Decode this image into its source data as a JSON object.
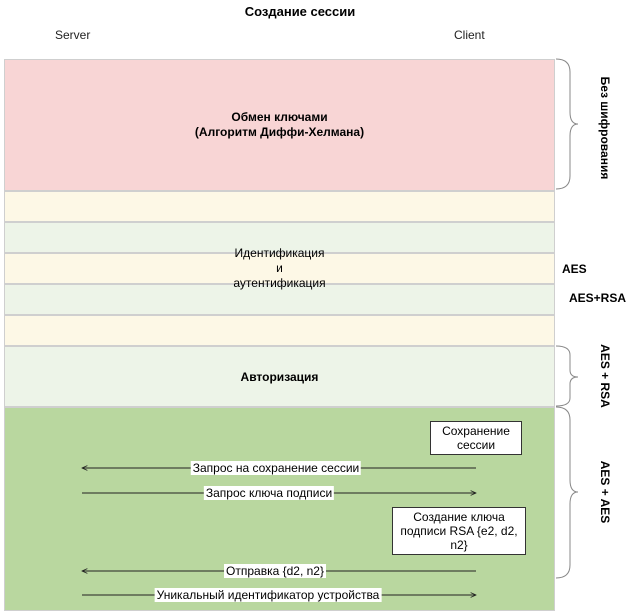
{
  "title": "Создание сессии",
  "parties": {
    "server": "Server",
    "client": "Client"
  },
  "sections": {
    "key_exchange": {
      "line1": "Обмен ключами",
      "line2": "(Алгоритм Диффи-Хелмана)"
    },
    "identification": {
      "line1": "Идентификация",
      "line2": "и",
      "line3": "аутентификация"
    },
    "authorization": {
      "label": "Авторизация"
    }
  },
  "side_labels": {
    "no_encryption": "Без шифрования",
    "aes": "AES",
    "aes_rsa": "AES+RSA",
    "aes_plus_rsa": "AES + RSA",
    "aes_plus_aes": "AES + AES"
  },
  "notes": {
    "save_session": {
      "line1": "Сохранение",
      "line2": "сессии"
    },
    "create_key": {
      "line1": "Создание ключа",
      "line2": "подписи RSA {e2, d2,",
      "line3": "n2}"
    }
  },
  "messages": [
    {
      "label": "Запрос на сохранение сессии",
      "direction": "to-server"
    },
    {
      "label": "Запрос ключа подписи",
      "direction": "to-client"
    },
    {
      "label": "Отправка {d2, n2}",
      "direction": "to-server"
    },
    {
      "label": "Уникальный идентификатор устройства",
      "direction": "to-client"
    }
  ],
  "colors": {
    "key_exchange_band": "#f8d5d5",
    "cream_band": "#fdf8e6",
    "light_green_band": "#edf4e8",
    "green_band": "#b9d79f",
    "bracket": "#888888"
  }
}
